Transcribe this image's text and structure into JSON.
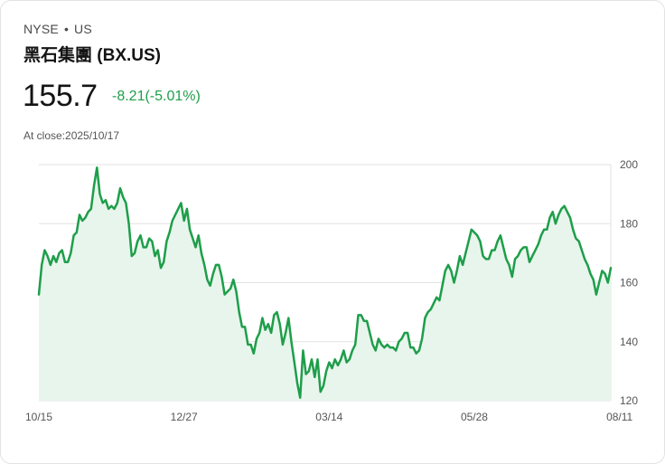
{
  "header": {
    "exchange": "NYSE",
    "separator": "•",
    "region": "US",
    "name": "黑石集團 (BX.US)",
    "price": "155.7",
    "change": "-8.21(-5.01%)",
    "close_label": "At close:2025/10/17"
  },
  "colors": {
    "line": "#1e9e4a",
    "area": "#e8f5ec",
    "grid": "#e2e2e2",
    "change": "#1e9e4a"
  },
  "chart_data": {
    "type": "area",
    "title": "",
    "xlabel": "",
    "ylabel": "",
    "ylim": [
      120,
      200
    ],
    "yticks": [
      200,
      180,
      160,
      140,
      120
    ],
    "y_axis_side": "right",
    "grid": true,
    "x_tick_labels": [
      "10/15",
      "12/27",
      "03/14",
      "05/28",
      "08/11"
    ],
    "x_tick_index": [
      0,
      50,
      100,
      150,
      200
    ],
    "values": [
      156,
      166,
      171,
      169,
      166,
      169,
      167,
      170,
      171,
      167,
      167,
      170,
      176,
      177,
      183,
      181,
      182,
      184,
      185,
      193,
      199,
      190,
      187,
      188,
      185,
      186,
      185,
      187,
      192,
      189,
      187,
      180,
      169,
      170,
      174,
      176,
      172,
      172,
      175,
      174,
      169,
      171,
      165,
      167,
      174,
      177,
      181,
      183,
      185,
      187,
      181,
      185,
      178,
      175,
      172,
      176,
      170,
      166,
      161,
      159,
      163,
      166,
      166,
      162,
      156,
      157,
      158,
      161,
      157,
      150,
      145,
      145,
      139,
      139,
      136,
      141,
      143,
      148,
      144,
      146,
      143,
      149,
      150,
      146,
      139,
      143,
      148,
      140,
      133,
      126,
      121,
      137,
      129,
      130,
      134,
      128,
      134,
      123,
      125,
      130,
      133,
      131,
      134,
      132,
      134,
      137,
      133,
      134,
      137,
      139,
      149,
      149,
      147,
      147,
      143,
      139,
      137,
      141,
      139,
      138,
      139,
      138,
      138,
      137,
      140,
      141,
      143,
      143,
      138,
      138,
      136,
      137,
      141,
      148,
      150,
      151,
      153,
      155,
      154,
      159,
      164,
      166,
      164,
      160,
      164,
      169,
      166,
      170,
      174,
      178,
      177,
      176,
      174,
      169,
      168,
      168,
      171,
      171,
      174,
      176,
      172,
      168,
      166,
      162,
      168,
      169,
      171,
      172,
      172,
      167,
      169,
      171,
      173,
      176,
      178,
      178,
      182,
      184,
      180,
      183,
      185,
      186,
      184,
      182,
      178,
      175,
      174,
      171,
      168,
      166,
      163,
      161,
      156,
      160,
      164,
      163,
      160,
      165
    ]
  }
}
